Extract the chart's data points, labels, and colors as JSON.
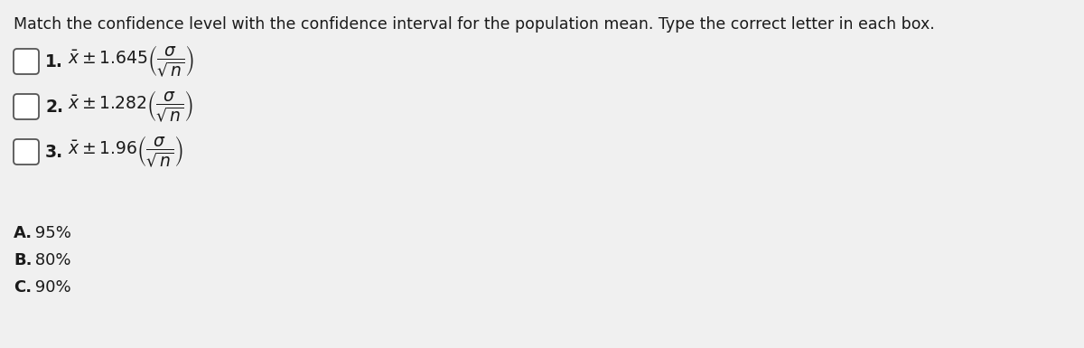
{
  "title": "Match the confidence level with the confidence interval for the population mean. Type the correct letter in each box.",
  "title_fontsize": 12.5,
  "background_color": "#f0f0f0",
  "items": [
    {
      "number": "1.",
      "formula": "$\\bar{x} \\pm 1.645\\left(\\dfrac{\\sigma}{\\sqrt{n}}\\right)$"
    },
    {
      "number": "2.",
      "formula": "$\\bar{x} \\pm 1.282\\left(\\dfrac{\\sigma}{\\sqrt{n}}\\right)$"
    },
    {
      "number": "3.",
      "formula": "$\\bar{x} \\pm 1.96\\left(\\dfrac{\\sigma}{\\sqrt{n}}\\right)$"
    }
  ],
  "answers": [
    {
      "bold": "A.",
      "rest": " 95%"
    },
    {
      "bold": "B.",
      "rest": " 80%"
    },
    {
      "bold": "C.",
      "rest": " 90%"
    }
  ],
  "text_color": "#1a1a1a",
  "formula_fontsize": 13.5,
  "answer_fontsize": 13,
  "number_fontsize": 13.5
}
